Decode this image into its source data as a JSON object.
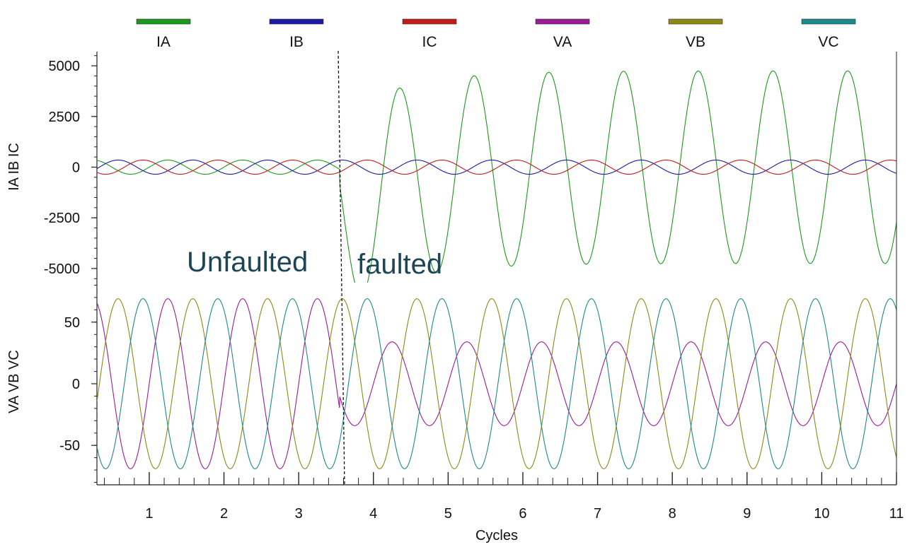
{
  "chart_data": {
    "type": "line",
    "xlabel": "Cycles",
    "xlim": [
      0.3,
      11
    ],
    "x_ticks": [
      1,
      2,
      3,
      4,
      5,
      6,
      7,
      8,
      9,
      10,
      11
    ],
    "fault_time": 3.55,
    "annotations": [
      "Unfaulted",
      "faulted"
    ],
    "legend": [
      {
        "name": "IA",
        "color": "#1a9a1a"
      },
      {
        "name": "IB",
        "color": "#1a1aa6"
      },
      {
        "name": "IC",
        "color": "#c41a1a"
      },
      {
        "name": "VA",
        "color": "#9a1a9a"
      },
      {
        "name": "VB",
        "color": "#8c8a14"
      },
      {
        "name": "VC",
        "color": "#1a8a8a"
      }
    ],
    "panels": [
      {
        "ylabel": "IA IB IC",
        "ylim": [
          -5700,
          5700
        ],
        "y_ticks": [
          5000,
          2500,
          0,
          -2500,
          -5000
        ],
        "series": [
          {
            "name": "IA",
            "color": "#1a9a1a",
            "pre_amplitude": 350,
            "pre_phase_deg": 0,
            "post_amplitude": 4750,
            "post_phase_deg": -35,
            "dc_offset": -2300,
            "dc_decay_cycles": 0.8
          },
          {
            "name": "IB",
            "color": "#1a1aa6",
            "pre_amplitude": 350,
            "pre_phase_deg": -120,
            "post_amplitude": 350,
            "post_phase_deg": -120
          },
          {
            "name": "IC",
            "color": "#c41a1a",
            "pre_amplitude": 350,
            "pre_phase_deg": 120,
            "post_amplitude": 350,
            "post_phase_deg": 120
          }
        ]
      },
      {
        "ylabel": "VA VB VC",
        "ylim": [
          -82,
          82
        ],
        "y_ticks": [
          50,
          0,
          -50
        ],
        "series": [
          {
            "name": "VA",
            "color": "#9a1a9a",
            "pre_amplitude": 69,
            "pre_phase_deg": 0,
            "post_amplitude": 34,
            "post_phase_deg": 0
          },
          {
            "name": "VB",
            "color": "#8c8a14",
            "pre_amplitude": 69,
            "pre_phase_deg": -120,
            "post_amplitude": 69,
            "post_phase_deg": -120
          },
          {
            "name": "VC",
            "color": "#1a8a8a",
            "pre_amplitude": 69,
            "pre_phase_deg": 120,
            "post_amplitude": 69,
            "post_phase_deg": 120
          }
        ]
      }
    ]
  }
}
